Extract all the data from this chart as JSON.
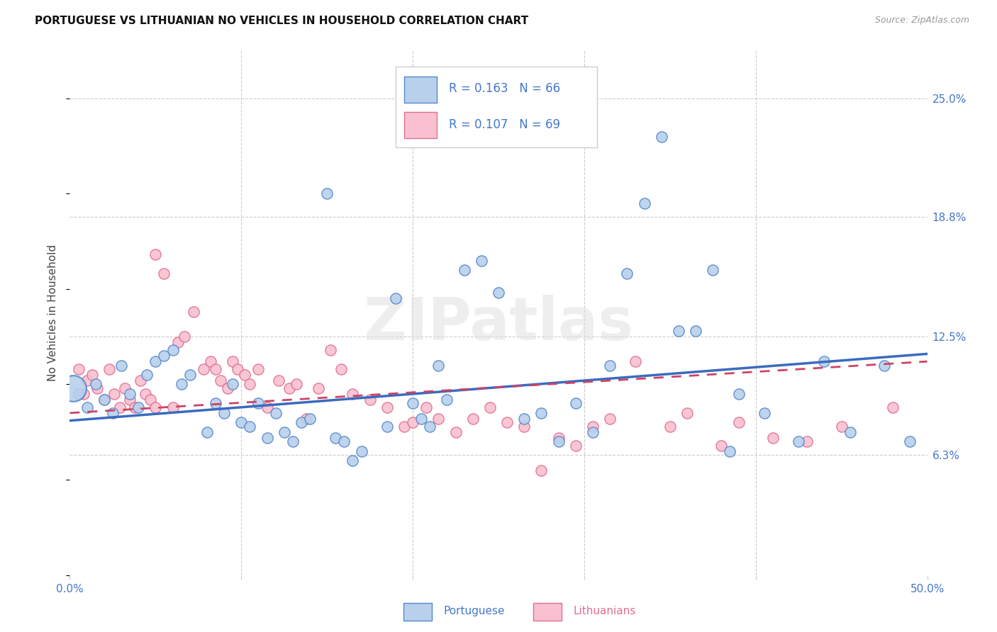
{
  "title": "PORTUGUESE VS LITHUANIAN NO VEHICLES IN HOUSEHOLD CORRELATION CHART",
  "source": "Source: ZipAtlas.com",
  "ylabel": "No Vehicles in Household",
  "ytick_labels": [
    "6.3%",
    "12.5%",
    "18.8%",
    "25.0%"
  ],
  "ytick_values": [
    6.3,
    12.5,
    18.8,
    25.0
  ],
  "xlim": [
    0.0,
    50.0
  ],
  "ylim": [
    0.0,
    27.5
  ],
  "watermark": "ZIPatlas",
  "blue_face": "#b8d0ec",
  "blue_edge": "#5588cc",
  "blue_line": "#3a6bbf",
  "pink_face": "#f9c0d0",
  "pink_edge": "#e07090",
  "pink_line": "#cc4466",
  "text_blue": "#4477cc",
  "text_black": "#222222",
  "grid_color": "#cccccc",
  "blue_trend_x": [
    0,
    50
  ],
  "blue_trend_y": [
    8.1,
    11.6
  ],
  "pink_trend_x": [
    0,
    50
  ],
  "pink_trend_y": [
    8.5,
    11.2
  ],
  "blue_scatter": [
    [
      0.5,
      9.5
    ],
    [
      1.0,
      8.8
    ],
    [
      1.5,
      10.0
    ],
    [
      2.0,
      9.2
    ],
    [
      2.5,
      8.5
    ],
    [
      3.0,
      11.0
    ],
    [
      3.5,
      9.5
    ],
    [
      4.0,
      8.8
    ],
    [
      4.5,
      10.5
    ],
    [
      5.0,
      11.2
    ],
    [
      5.5,
      11.5
    ],
    [
      6.0,
      11.8
    ],
    [
      6.5,
      10.0
    ],
    [
      7.0,
      10.5
    ],
    [
      8.0,
      7.5
    ],
    [
      8.5,
      9.0
    ],
    [
      9.0,
      8.5
    ],
    [
      9.5,
      10.0
    ],
    [
      10.0,
      8.0
    ],
    [
      10.5,
      7.8
    ],
    [
      11.0,
      9.0
    ],
    [
      11.5,
      7.2
    ],
    [
      12.0,
      8.5
    ],
    [
      12.5,
      7.5
    ],
    [
      13.0,
      7.0
    ],
    [
      13.5,
      8.0
    ],
    [
      14.0,
      8.2
    ],
    [
      15.0,
      20.0
    ],
    [
      15.5,
      7.2
    ],
    [
      16.0,
      7.0
    ],
    [
      16.5,
      6.0
    ],
    [
      17.0,
      6.5
    ],
    [
      18.5,
      7.8
    ],
    [
      19.0,
      14.5
    ],
    [
      20.0,
      9.0
    ],
    [
      20.5,
      8.2
    ],
    [
      21.0,
      7.8
    ],
    [
      21.5,
      11.0
    ],
    [
      22.0,
      9.2
    ],
    [
      23.0,
      16.0
    ],
    [
      24.0,
      16.5
    ],
    [
      25.0,
      14.8
    ],
    [
      26.5,
      8.2
    ],
    [
      27.5,
      8.5
    ],
    [
      28.5,
      7.0
    ],
    [
      29.5,
      9.0
    ],
    [
      30.5,
      7.5
    ],
    [
      31.5,
      11.0
    ],
    [
      32.5,
      15.8
    ],
    [
      33.5,
      19.5
    ],
    [
      34.5,
      23.0
    ],
    [
      35.5,
      12.8
    ],
    [
      36.5,
      12.8
    ],
    [
      37.5,
      16.0
    ],
    [
      38.5,
      6.5
    ],
    [
      39.0,
      9.5
    ],
    [
      40.5,
      8.5
    ],
    [
      42.5,
      7.0
    ],
    [
      44.0,
      11.2
    ],
    [
      45.5,
      7.5
    ],
    [
      47.5,
      11.0
    ],
    [
      49.0,
      7.0
    ]
  ],
  "blue_big_x": [
    0.2
  ],
  "blue_big_y": [
    9.8
  ],
  "blue_big_s": 700,
  "pink_scatter": [
    [
      0.5,
      10.8
    ],
    [
      0.8,
      9.5
    ],
    [
      1.0,
      10.2
    ],
    [
      1.3,
      10.5
    ],
    [
      1.6,
      9.8
    ],
    [
      2.0,
      9.2
    ],
    [
      2.3,
      10.8
    ],
    [
      2.6,
      9.5
    ],
    [
      2.9,
      8.8
    ],
    [
      3.2,
      9.8
    ],
    [
      3.5,
      9.2
    ],
    [
      3.8,
      8.8
    ],
    [
      4.1,
      10.2
    ],
    [
      4.4,
      9.5
    ],
    [
      4.7,
      9.2
    ],
    [
      5.0,
      8.8
    ],
    [
      5.0,
      16.8
    ],
    [
      5.5,
      15.8
    ],
    [
      6.0,
      8.8
    ],
    [
      6.3,
      12.2
    ],
    [
      6.7,
      12.5
    ],
    [
      7.2,
      13.8
    ],
    [
      7.8,
      10.8
    ],
    [
      8.2,
      11.2
    ],
    [
      8.5,
      10.8
    ],
    [
      8.8,
      10.2
    ],
    [
      9.2,
      9.8
    ],
    [
      9.5,
      11.2
    ],
    [
      9.8,
      10.8
    ],
    [
      10.2,
      10.5
    ],
    [
      10.5,
      10.0
    ],
    [
      11.0,
      10.8
    ],
    [
      11.5,
      8.8
    ],
    [
      12.2,
      10.2
    ],
    [
      12.8,
      9.8
    ],
    [
      13.2,
      10.0
    ],
    [
      13.8,
      8.2
    ],
    [
      14.5,
      9.8
    ],
    [
      15.2,
      11.8
    ],
    [
      15.8,
      10.8
    ],
    [
      16.5,
      9.5
    ],
    [
      17.5,
      9.2
    ],
    [
      18.5,
      8.8
    ],
    [
      19.5,
      7.8
    ],
    [
      20.0,
      8.0
    ],
    [
      20.8,
      8.8
    ],
    [
      21.5,
      8.2
    ],
    [
      22.5,
      7.5
    ],
    [
      23.5,
      8.2
    ],
    [
      24.5,
      8.8
    ],
    [
      25.5,
      8.0
    ],
    [
      26.5,
      7.8
    ],
    [
      27.5,
      5.5
    ],
    [
      28.5,
      7.2
    ],
    [
      29.5,
      6.8
    ],
    [
      30.5,
      7.8
    ],
    [
      31.5,
      8.2
    ],
    [
      33.0,
      11.2
    ],
    [
      35.0,
      7.8
    ],
    [
      36.0,
      8.5
    ],
    [
      38.0,
      6.8
    ],
    [
      39.0,
      8.0
    ],
    [
      41.0,
      7.2
    ],
    [
      43.0,
      7.0
    ],
    [
      45.0,
      7.8
    ],
    [
      48.0,
      8.8
    ]
  ]
}
